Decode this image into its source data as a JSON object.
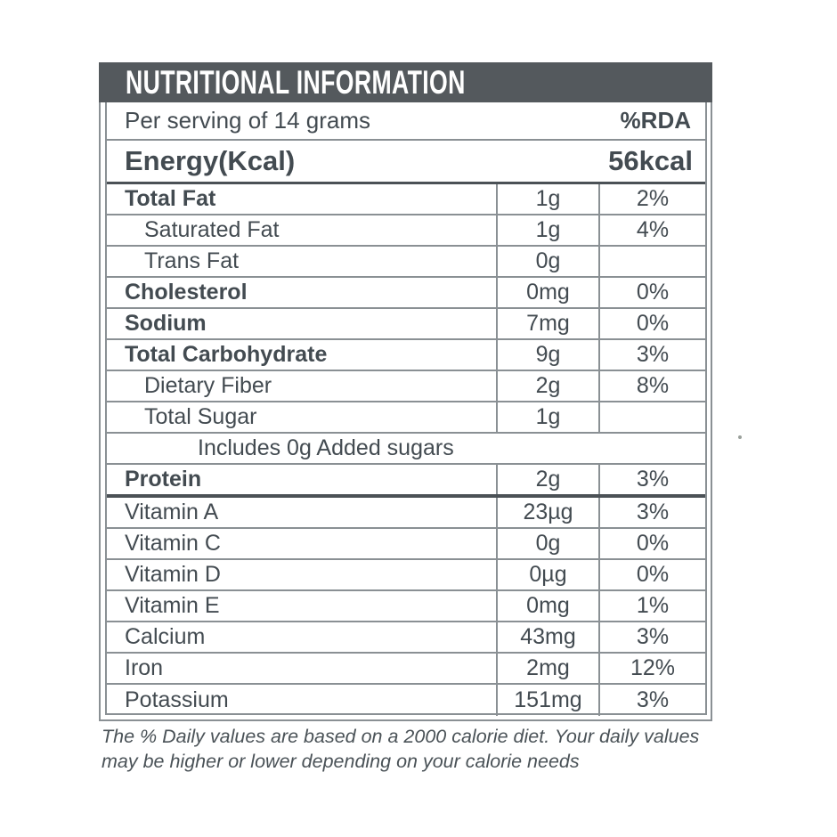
{
  "colors": {
    "bar": "#54595d",
    "text": "#434b51",
    "line": "#8a9094",
    "heavy": "#4b5156",
    "bg": "#ffffff"
  },
  "header": {
    "title": "NUTRITIONAL INFORMATION"
  },
  "subheader": {
    "label": "Per serving of 14 grams",
    "rda_header": "%RDA"
  },
  "energy": {
    "label": "Energy(Kcal)",
    "value": "56kcal"
  },
  "rows": [
    {
      "label": "Total Fat",
      "value": "1g",
      "rda": "2%",
      "bold": true
    },
    {
      "label": "Saturated Fat",
      "value": "1g",
      "rda": "4%",
      "indent": 1
    },
    {
      "label": "Trans Fat",
      "value": "0g",
      "rda": "",
      "indent": 1
    },
    {
      "label": "Cholesterol",
      "value": "0mg",
      "rda": "0%",
      "bold": true
    },
    {
      "label": "Sodium",
      "value": "7mg",
      "rda": "0%",
      "bold": true
    },
    {
      "label": "Total Carbohydrate",
      "value": "9g",
      "rda": "3%",
      "bold": true
    },
    {
      "label": "Dietary Fiber",
      "value": "2g",
      "rda": "8%",
      "indent": 1
    },
    {
      "label": "Total Sugar",
      "value": "1g",
      "rda": "",
      "indent": 1
    },
    {
      "type": "full",
      "label": "Includes 0g Added sugars"
    },
    {
      "label": "Protein",
      "value": "2g",
      "rda": "3%",
      "bold": true,
      "heavy_bottom": true
    },
    {
      "label": "Vitamin A",
      "value": "23µg",
      "rda": "3%"
    },
    {
      "label": "Vitamin C",
      "value": "0g",
      "rda": "0%"
    },
    {
      "label": "Vitamin D",
      "value": "0µg",
      "rda": "0%"
    },
    {
      "label": "Vitamin E",
      "value": "0mg",
      "rda": "1%"
    },
    {
      "label": "Calcium",
      "value": "43mg",
      "rda": "3%"
    },
    {
      "label": "Iron",
      "value": "2mg",
      "rda": "12%"
    },
    {
      "label": "Potassium",
      "value": "151mg",
      "rda": "3%"
    }
  ],
  "footer": {
    "line1": "The % Daily values are based on a 2000 calorie diet. Your daily values",
    "line2": "may be higher or lower depending on your calorie needs"
  }
}
